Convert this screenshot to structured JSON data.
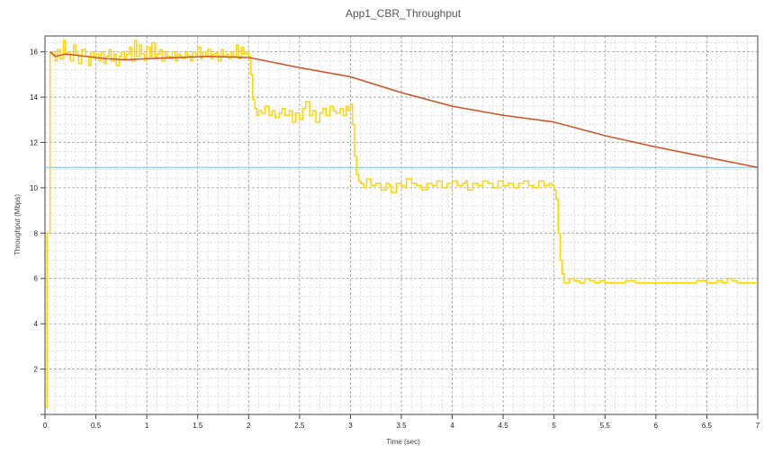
{
  "chart_data": {
    "type": "line",
    "title": "App1_CBR_Throughput",
    "xlabel": "Time (sec)",
    "ylabel": "Throughput (Mbps)",
    "xlim": [
      0,
      7
    ],
    "ylim": [
      0,
      16.7
    ],
    "x_ticks": [
      "0",
      "0.5",
      "1",
      "1.5",
      "2",
      "2.5",
      "3",
      "3.5",
      "4",
      "4.5",
      "5",
      "5.5",
      "6",
      "6.5",
      "7"
    ],
    "y_ticks": [
      "2",
      "4",
      "6",
      "8",
      "10",
      "12",
      "14",
      "16"
    ],
    "grid": true,
    "legend": "none",
    "series": [
      {
        "color": "#FFD200",
        "style": "instantaneous",
        "x": [
          0,
          0.02,
          0.05,
          0.08,
          0.1,
          0.12,
          0.15,
          0.18,
          0.2,
          0.22,
          0.25,
          0.28,
          0.3,
          0.33,
          0.36,
          0.4,
          0.43,
          0.45,
          0.48,
          0.5,
          0.53,
          0.55,
          0.58,
          0.6,
          0.63,
          0.65,
          0.68,
          0.7,
          0.73,
          0.75,
          0.78,
          0.8,
          0.83,
          0.85,
          0.88,
          0.9,
          0.93,
          0.95,
          0.98,
          1.0,
          1.03,
          1.05,
          1.08,
          1.1,
          1.13,
          1.15,
          1.18,
          1.2,
          1.23,
          1.25,
          1.28,
          1.3,
          1.33,
          1.35,
          1.38,
          1.4,
          1.43,
          1.45,
          1.48,
          1.5,
          1.53,
          1.55,
          1.58,
          1.6,
          1.63,
          1.65,
          1.68,
          1.7,
          1.73,
          1.75,
          1.78,
          1.8,
          1.83,
          1.85,
          1.88,
          1.9,
          1.93,
          1.95,
          1.98,
          2.0,
          2.02,
          2.04,
          2.06,
          2.08,
          2.1,
          2.13,
          2.16,
          2.2,
          2.23,
          2.26,
          2.3,
          2.33,
          2.36,
          2.4,
          2.43,
          2.46,
          2.5,
          2.53,
          2.56,
          2.6,
          2.63,
          2.66,
          2.7,
          2.73,
          2.76,
          2.8,
          2.83,
          2.86,
          2.9,
          2.93,
          2.96,
          2.98,
          3.0,
          3.02,
          3.04,
          3.06,
          3.08,
          3.1,
          3.13,
          3.16,
          3.2,
          3.25,
          3.3,
          3.35,
          3.38,
          3.4,
          3.45,
          3.5,
          3.53,
          3.55,
          3.6,
          3.65,
          3.7,
          3.75,
          3.8,
          3.85,
          3.9,
          3.95,
          4.0,
          4.05,
          4.1,
          4.13,
          4.15,
          4.2,
          4.25,
          4.3,
          4.35,
          4.4,
          4.45,
          4.5,
          4.55,
          4.6,
          4.65,
          4.7,
          4.75,
          4.8,
          4.85,
          4.9,
          4.95,
          4.98,
          5.0,
          5.02,
          5.04,
          5.06,
          5.08,
          5.1,
          5.15,
          5.2,
          5.25,
          5.3,
          5.35,
          5.4,
          5.45,
          5.5,
          5.6,
          5.7,
          5.8,
          5.9,
          6.0,
          6.1,
          6.2,
          6.3,
          6.4,
          6.5,
          6.55,
          6.6,
          6.65,
          6.7,
          6.75,
          6.8,
          6.9,
          7.0
        ],
        "y": [
          0.3,
          8.0,
          16.0,
          15.9,
          15.6,
          16.1,
          15.7,
          16.5,
          15.9,
          16.0,
          15.6,
          16.3,
          15.9,
          15.5,
          16.1,
          15.8,
          15.4,
          16.0,
          15.7,
          15.9,
          15.6,
          16.0,
          15.5,
          15.8,
          16.1,
          15.6,
          15.9,
          15.4,
          15.8,
          16.0,
          15.7,
          15.9,
          16.2,
          15.6,
          16.5,
          15.8,
          16.3,
          15.9,
          15.6,
          16.2,
          15.8,
          16.4,
          15.7,
          15.9,
          16.1,
          15.6,
          16.0,
          15.8,
          15.7,
          16.0,
          15.6,
          15.9,
          15.8,
          15.7,
          16.0,
          15.8,
          15.6,
          16.0,
          15.9,
          16.2,
          15.7,
          16.0,
          15.8,
          16.1,
          15.7,
          15.9,
          16.0,
          15.6,
          16.1,
          15.8,
          15.9,
          15.7,
          16.0,
          15.8,
          16.3,
          15.7,
          16.2,
          15.9,
          16.0,
          15.8,
          15.0,
          13.9,
          13.5,
          13.2,
          13.4,
          13.3,
          13.6,
          13.2,
          13.4,
          13.1,
          13.3,
          13.5,
          13.2,
          13.4,
          12.9,
          13.3,
          13.0,
          13.5,
          13.8,
          13.2,
          13.4,
          12.9,
          13.3,
          13.5,
          13.2,
          13.6,
          13.4,
          13.3,
          13.5,
          13.2,
          13.6,
          13.4,
          13.7,
          12.8,
          11.4,
          10.6,
          10.3,
          10.2,
          10.0,
          10.4,
          10.1,
          10.2,
          9.9,
          10.2,
          10.1,
          9.8,
          10.2,
          10.1,
          10.0,
          10.4,
          10.2,
          10.1,
          9.9,
          10.2,
          10.1,
          10.3,
          10.0,
          10.2,
          10.3,
          10.1,
          10.2,
          10.3,
          9.9,
          10.2,
          10.1,
          10.3,
          10.2,
          10.0,
          10.3,
          10.1,
          10.2,
          10.0,
          10.2,
          10.3,
          10.1,
          10.0,
          10.3,
          10.1,
          10.2,
          10.1,
          9.9,
          9.5,
          8.0,
          6.8,
          6.2,
          5.8,
          6.0,
          5.9,
          5.8,
          6.0,
          5.9,
          5.8,
          5.9,
          5.8,
          5.8,
          5.9,
          5.8,
          5.8,
          5.8,
          5.8,
          5.8,
          5.8,
          5.9,
          5.8,
          5.8,
          5.9,
          5.8,
          6.0,
          5.9,
          5.8,
          5.8,
          5.8
        ]
      },
      {
        "color": "#D2501E",
        "style": "average",
        "x": [
          0.05,
          0.1,
          0.2,
          0.4,
          0.6,
          0.8,
          1.0,
          1.3,
          1.6,
          2.0,
          2.5,
          3.0,
          3.5,
          4.0,
          4.5,
          5.0,
          5.5,
          6.0,
          6.5,
          7.0
        ],
        "y": [
          16.0,
          15.8,
          15.9,
          15.8,
          15.7,
          15.65,
          15.7,
          15.75,
          15.8,
          15.75,
          15.3,
          14.9,
          14.2,
          13.6,
          13.2,
          12.9,
          12.3,
          11.8,
          11.35,
          10.9
        ]
      },
      {
        "color": "#8ED0F0",
        "style": "reference",
        "x": [
          0,
          7
        ],
        "y": [
          10.9,
          10.9
        ]
      }
    ]
  }
}
